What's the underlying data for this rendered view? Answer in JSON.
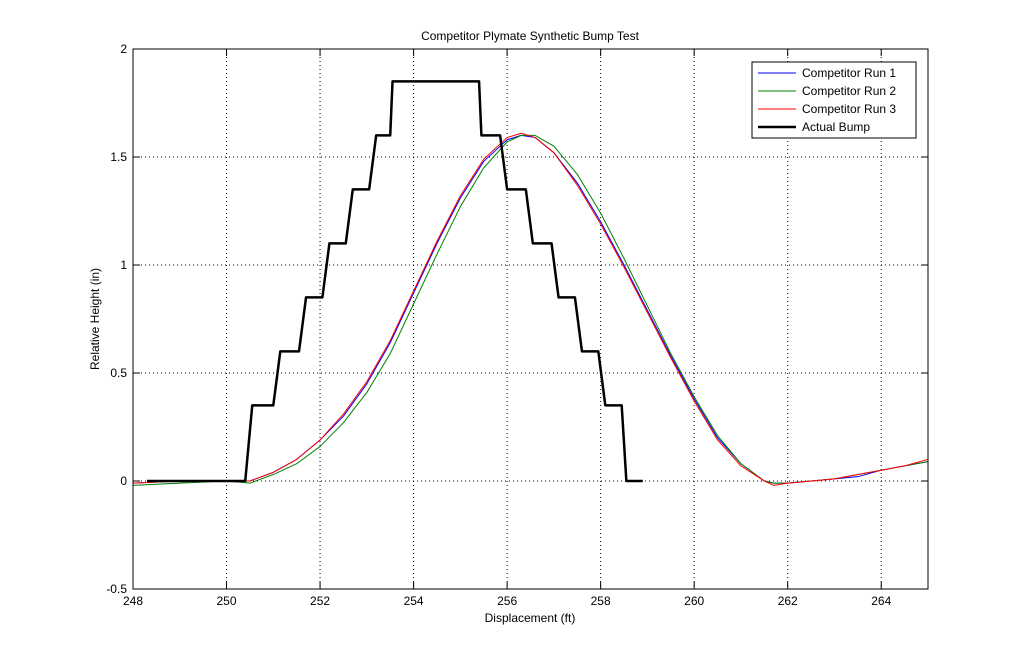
{
  "chart_data": {
    "type": "line",
    "title": "Competitor Plymate Synthetic Bump Test",
    "xlabel": "Displacement (ft)",
    "ylabel": "Relative Height (in)",
    "xlim": [
      248,
      265
    ],
    "ylim": [
      -0.5,
      2
    ],
    "xticks": [
      248,
      250,
      252,
      254,
      256,
      258,
      260,
      262,
      264
    ],
    "xtick_labels": [
      "248",
      "250",
      "252",
      "254",
      "256",
      "258",
      "260",
      "262",
      "264"
    ],
    "yticks": [
      -0.5,
      0,
      0.5,
      1,
      1.5,
      2
    ],
    "ytick_labels": [
      "-0.5",
      "0",
      "0.5",
      "1",
      "1.5",
      "2"
    ],
    "grid": true,
    "legend_position": "top-right",
    "series": [
      {
        "name": "Competitor Run 1",
        "color": "#0000ff",
        "x": [
          248,
          249,
          250,
          250.5,
          251,
          251.5,
          252,
          252.5,
          253,
          253.5,
          254,
          254.5,
          255,
          255.5,
          256,
          256.3,
          256.6,
          257,
          257.5,
          258,
          258.5,
          259,
          259.5,
          260,
          260.5,
          261,
          261.5,
          261.7,
          262,
          262.5,
          263,
          263.5,
          264,
          264.5,
          265
        ],
        "y": [
          -0.01,
          0.0,
          0.0,
          0.0,
          0.04,
          0.1,
          0.19,
          0.3,
          0.45,
          0.64,
          0.87,
          1.1,
          1.31,
          1.48,
          1.58,
          1.6,
          1.59,
          1.52,
          1.38,
          1.2,
          1.0,
          0.79,
          0.58,
          0.38,
          0.2,
          0.08,
          0.0,
          -0.01,
          -0.01,
          0.0,
          0.01,
          0.02,
          0.05,
          0.07,
          0.09
        ]
      },
      {
        "name": "Competitor Run 2",
        "color": "#008000",
        "x": [
          248,
          249,
          250,
          250.5,
          251,
          251.5,
          252,
          252.5,
          253,
          253.5,
          254,
          254.5,
          255,
          255.5,
          256,
          256.3,
          256.6,
          257,
          257.5,
          258,
          258.5,
          259,
          259.5,
          260,
          260.5,
          261,
          261.5,
          261.7,
          262,
          262.5,
          263,
          263.5,
          264,
          264.5,
          265
        ],
        "y": [
          -0.02,
          -0.01,
          0.0,
          -0.01,
          0.03,
          0.08,
          0.16,
          0.27,
          0.41,
          0.59,
          0.82,
          1.05,
          1.27,
          1.45,
          1.57,
          1.6,
          1.6,
          1.55,
          1.42,
          1.24,
          1.03,
          0.81,
          0.59,
          0.39,
          0.21,
          0.08,
          0.0,
          -0.01,
          -0.01,
          0.0,
          0.01,
          0.03,
          0.05,
          0.07,
          0.09
        ]
      },
      {
        "name": "Competitor Run 3",
        "color": "#ff0000",
        "x": [
          248,
          249,
          250,
          250.5,
          251,
          251.5,
          252,
          252.5,
          253,
          253.5,
          254,
          254.5,
          255,
          255.5,
          256,
          256.3,
          256.6,
          257,
          257.5,
          258,
          258.5,
          259,
          259.5,
          260,
          260.5,
          261,
          261.5,
          261.7,
          262,
          262.5,
          263,
          263.5,
          264,
          264.5,
          265
        ],
        "y": [
          -0.01,
          0.0,
          0.0,
          0.0,
          0.04,
          0.1,
          0.19,
          0.31,
          0.46,
          0.65,
          0.88,
          1.11,
          1.32,
          1.49,
          1.59,
          1.61,
          1.59,
          1.52,
          1.37,
          1.19,
          0.99,
          0.78,
          0.57,
          0.37,
          0.19,
          0.07,
          0.0,
          -0.02,
          -0.01,
          0.0,
          0.01,
          0.03,
          0.05,
          0.07,
          0.1
        ]
      },
      {
        "name": "Actual Bump",
        "color": "#000000",
        "line_width": 2.5,
        "x": [
          248.3,
          250.4,
          250.55,
          251.0,
          251.15,
          251.55,
          251.7,
          252.05,
          252.2,
          252.55,
          252.7,
          253.05,
          253.2,
          253.5,
          253.55,
          255.4,
          255.45,
          255.85,
          256.0,
          256.4,
          256.55,
          256.95,
          257.1,
          257.45,
          257.6,
          257.95,
          258.1,
          258.45,
          258.55,
          258.9
        ],
        "y": [
          0,
          0,
          0.35,
          0.35,
          0.6,
          0.6,
          0.85,
          0.85,
          1.1,
          1.1,
          1.35,
          1.35,
          1.6,
          1.6,
          1.85,
          1.85,
          1.6,
          1.6,
          1.35,
          1.35,
          1.1,
          1.1,
          0.85,
          0.85,
          0.6,
          0.6,
          0.35,
          0.35,
          0,
          0
        ]
      }
    ]
  }
}
